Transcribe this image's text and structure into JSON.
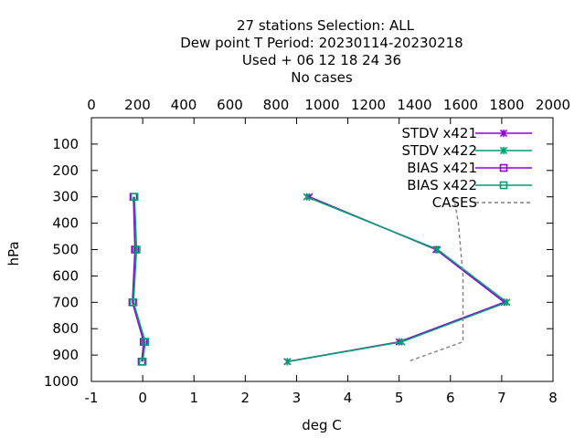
{
  "chart_data": {
    "type": "line",
    "title_lines": [
      "27 stations Selection: ALL",
      "Dew point T  Period: 20230114-20230218",
      "Used   + 06 12 18 24 36",
      "No cases"
    ],
    "xlabel": "deg C",
    "ylabel": "hPa",
    "xlim": [
      -1,
      8
    ],
    "ylim": [
      1000,
      0
    ],
    "x2lim": [
      0,
      2000
    ],
    "x_ticks": [
      "-1",
      "0",
      "1",
      "2",
      "3",
      "4",
      "5",
      "6",
      "7",
      "8"
    ],
    "x2_ticks": [
      "0",
      "200",
      "400",
      "600",
      "800",
      "1000",
      "1200",
      "1400",
      "1600",
      "1800",
      "2000"
    ],
    "y_ticks": [
      "100",
      "200",
      "300",
      "400",
      "500",
      "600",
      "700",
      "800",
      "900",
      "1000"
    ],
    "legend_position": "top-right",
    "grid": false,
    "series": [
      {
        "name": "STDV x421",
        "color": "#9400d3",
        "marker": "x",
        "points": [
          [
            3.25,
            300
          ],
          [
            5.72,
            500
          ],
          [
            7.05,
            700
          ],
          [
            5.0,
            850
          ],
          [
            2.82,
            925
          ]
        ]
      },
      {
        "name": "STDV x422",
        "color": "#009e73",
        "marker": "x",
        "points": [
          [
            3.2,
            300
          ],
          [
            5.75,
            500
          ],
          [
            7.1,
            700
          ],
          [
            5.05,
            850
          ],
          [
            2.82,
            925
          ]
        ]
      },
      {
        "name": "BIAS x421",
        "color": "#9400d3",
        "marker": "square",
        "points": [
          [
            -0.18,
            300
          ],
          [
            -0.15,
            500
          ],
          [
            -0.2,
            700
          ],
          [
            0.02,
            850
          ],
          [
            -0.02,
            925
          ]
        ]
      },
      {
        "name": "BIAS x422",
        "color": "#009e73",
        "marker": "square",
        "points": [
          [
            -0.16,
            300
          ],
          [
            -0.12,
            500
          ],
          [
            -0.18,
            700
          ],
          [
            0.05,
            850
          ],
          [
            0.0,
            925
          ]
        ]
      },
      {
        "name": "CASES",
        "color": "#808080",
        "marker": "none",
        "dashed": true,
        "axis": "x2",
        "points": [
          [
            1570,
            300
          ],
          [
            1590,
            400
          ],
          [
            1600,
            500
          ],
          [
            1610,
            600
          ],
          [
            1610,
            700
          ],
          [
            1610,
            850
          ],
          [
            1450,
            900
          ],
          [
            1370,
            925
          ]
        ]
      }
    ]
  }
}
